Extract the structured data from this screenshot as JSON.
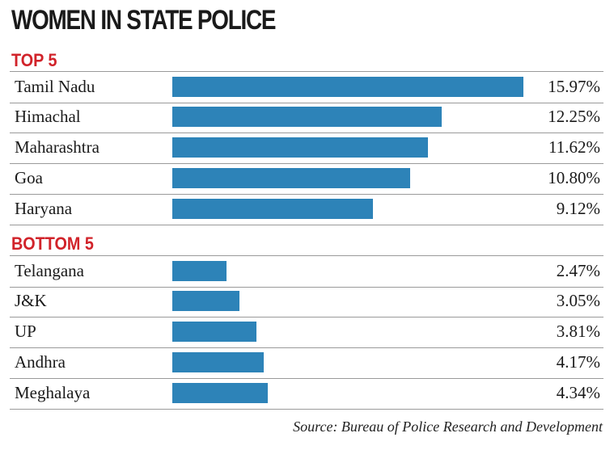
{
  "chart_data": {
    "type": "bar",
    "orientation": "horizontal",
    "title": "WOMEN IN STATE POLICE",
    "source": "Source: Bureau of Police Research and Development",
    "xmax": 15.97,
    "colors": {
      "bar": "#2d83b8",
      "section_heading": "#d1232a"
    },
    "groups": [
      {
        "heading": "TOP 5",
        "categories": [
          "Tamil Nadu",
          "Himachal",
          "Maharashtra",
          "Goa",
          "Haryana"
        ],
        "values": [
          15.97,
          12.25,
          11.62,
          10.8,
          9.12
        ],
        "value_labels": [
          "15.97%",
          "12.25%",
          "11.62%",
          "10.80%",
          "9.12%"
        ]
      },
      {
        "heading": "BOTTOM 5",
        "categories": [
          "Telangana",
          "J&K",
          "UP",
          "Andhra",
          "Meghalaya"
        ],
        "values": [
          2.47,
          3.05,
          3.81,
          4.17,
          4.34
        ],
        "value_labels": [
          "2.47%",
          "3.05%",
          "3.81%",
          "4.17%",
          "4.34%"
        ]
      }
    ]
  }
}
